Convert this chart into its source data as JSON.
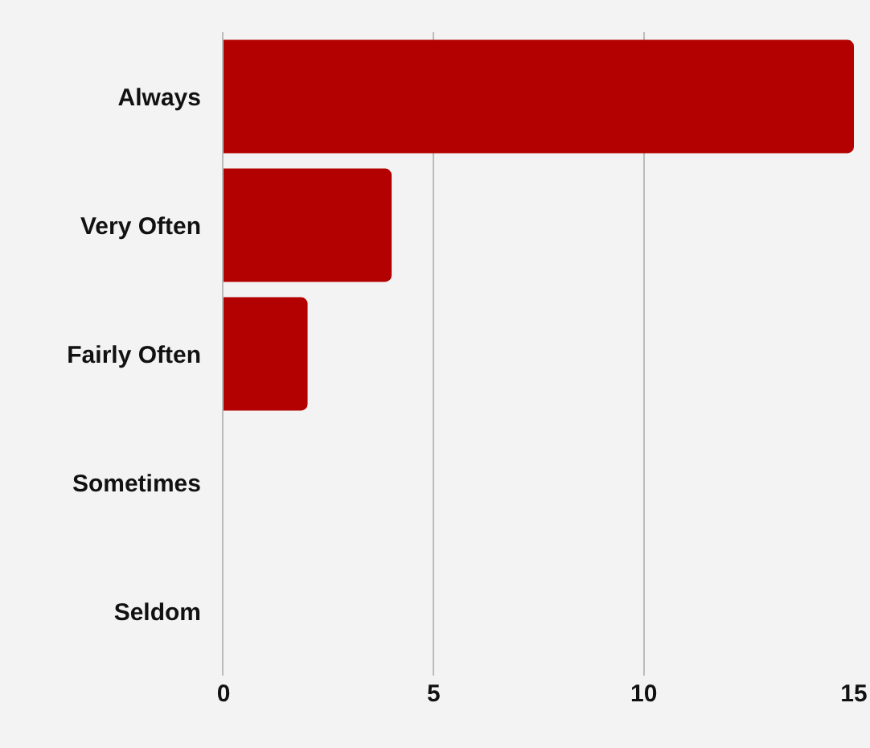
{
  "chart_data": {
    "type": "bar",
    "orientation": "horizontal",
    "categories": [
      "Always",
      "Very Often",
      "Fairly Often",
      "Sometimes",
      "Seldom"
    ],
    "values": [
      15,
      4,
      2,
      0,
      0
    ],
    "color": "#b30000",
    "xlim": [
      0,
      15
    ],
    "xticks": [
      0,
      5,
      10,
      15
    ],
    "grid": "x"
  }
}
